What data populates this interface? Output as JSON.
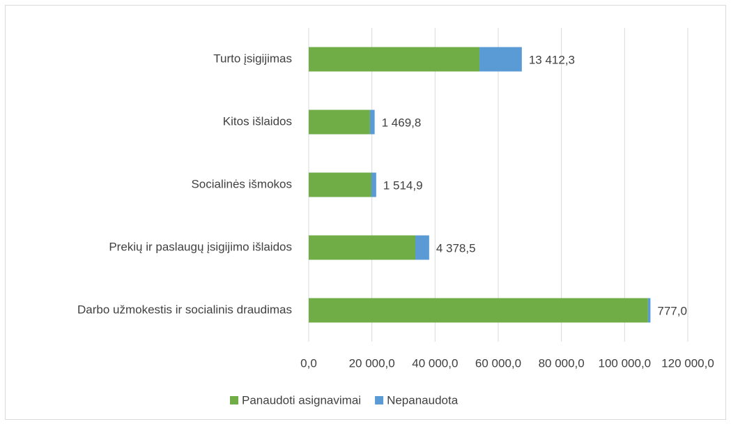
{
  "chart_data": {
    "type": "stacked_barh",
    "categories": [
      "Turto įsigijimas",
      "Kitos išlaidos",
      "Socialinės išmokos",
      "Prekių ir paslaugų įsigijimo išlaidos",
      "Darbo užmokestis ir socialinis draudimas"
    ],
    "series": [
      {
        "name": "Panaudoti asignavimai",
        "color": "#70ad47",
        "values": [
          54050,
          19400,
          19850,
          33750,
          107400
        ]
      },
      {
        "name": "Nepanaudota",
        "color": "#5b9bd5",
        "values": [
          13412.3,
          1469.8,
          1514.9,
          4378.5,
          777.0
        ],
        "value_labels": [
          "13 412,3",
          "1 469,8",
          "1 514,9",
          "4 378,5",
          "777,0"
        ]
      }
    ],
    "xlim": [
      0,
      120000
    ],
    "xticks": [
      {
        "value": 0,
        "label": "0,0"
      },
      {
        "value": 20000,
        "label": "20 000,0"
      },
      {
        "value": 40000,
        "label": "40 000,0"
      },
      {
        "value": 60000,
        "label": "60 000,0"
      },
      {
        "value": 80000,
        "label": "80 000,0"
      },
      {
        "value": 100000,
        "label": "100 000,0"
      },
      {
        "value": 120000,
        "label": "120 000,0"
      }
    ],
    "grid": true,
    "legend": "bottom"
  }
}
